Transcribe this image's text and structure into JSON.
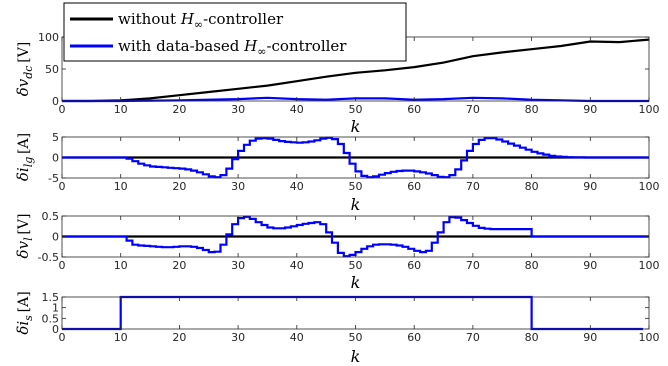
{
  "chart_data": [
    {
      "type": "line",
      "step": false,
      "ylabel_sym": "δv",
      "ylabel_sub": "dc",
      "ylabel_unit": "[V]",
      "xlabel": "k",
      "xlim": [
        0,
        100
      ],
      "ylim": [
        0,
        100
      ],
      "xticks": [
        0,
        10,
        20,
        30,
        40,
        50,
        60,
        70,
        80,
        90,
        100
      ],
      "yticks": [
        0,
        50,
        100
      ],
      "legend": {
        "placement": "top-left",
        "items": [
          {
            "text": "without ",
            "math": "H",
            "sub": "∞",
            "tail": "-controller",
            "color": "#000000"
          },
          {
            "text": "with data-based ",
            "math": "H",
            "sub": "∞",
            "tail": "-controller",
            "color": "#0000ff"
          }
        ]
      },
      "series": [
        {
          "color": "#000000",
          "x": [
            0,
            5,
            10,
            15,
            20,
            25,
            30,
            35,
            40,
            45,
            50,
            55,
            60,
            65,
            70,
            75,
            80,
            85,
            90,
            95,
            100
          ],
          "y": [
            0,
            0,
            1,
            4,
            9,
            14,
            19,
            24,
            31,
            38,
            44,
            48,
            53,
            60,
            70,
            76,
            81,
            86,
            93,
            92,
            96
          ]
        },
        {
          "color": "#0000ff",
          "x": [
            0,
            10,
            20,
            30,
            35,
            40,
            45,
            50,
            55,
            60,
            65,
            70,
            75,
            80,
            90,
            100
          ],
          "y": [
            0,
            0,
            1,
            3,
            5,
            3,
            2,
            4,
            4,
            2,
            3,
            5,
            4,
            2,
            0,
            0
          ]
        }
      ]
    },
    {
      "type": "line",
      "step": true,
      "ylabel_sym": "δi",
      "ylabel_sub": "lg",
      "ylabel_unit": "[A]",
      "xlabel": "k",
      "xlim": [
        0,
        100
      ],
      "ylim": [
        -5,
        5
      ],
      "xticks": [
        0,
        10,
        20,
        30,
        40,
        50,
        60,
        70,
        80,
        90,
        100
      ],
      "yticks": [
        -5,
        0,
        5
      ],
      "series": [
        {
          "color": "#000000",
          "x": [
            0,
            100
          ],
          "y": [
            0,
            0
          ]
        },
        {
          "color": "#0000ff",
          "x": [
            0,
            1,
            2,
            3,
            4,
            5,
            6,
            7,
            8,
            9,
            10,
            11,
            12,
            13,
            14,
            15,
            16,
            17,
            18,
            19,
            20,
            21,
            22,
            23,
            24,
            25,
            26,
            27,
            28,
            29,
            30,
            31,
            32,
            33,
            34,
            35,
            36,
            37,
            38,
            39,
            40,
            41,
            42,
            43,
            44,
            45,
            46,
            47,
            48,
            49,
            50,
            51,
            52,
            53,
            54,
            55,
            56,
            57,
            58,
            59,
            60,
            61,
            62,
            63,
            64,
            65,
            66,
            67,
            68,
            69,
            70,
            71,
            72,
            73,
            74,
            75,
            76,
            77,
            78,
            79,
            80,
            81,
            82,
            83,
            84,
            85,
            86,
            87,
            88,
            89,
            90,
            91,
            92,
            93,
            94,
            95,
            96,
            97,
            98,
            99
          ],
          "y": [
            0,
            0,
            0,
            0,
            0,
            0,
            0,
            0,
            0,
            0,
            0,
            -0.3,
            -0.9,
            -1.5,
            -1.9,
            -2.2,
            -2.3,
            -2.4,
            -2.5,
            -2.6,
            -2.7,
            -2.9,
            -3.2,
            -3.6,
            -4.1,
            -4.6,
            -4.8,
            -4.3,
            -2.7,
            -0.4,
            1.6,
            3.1,
            4.1,
            4.6,
            4.7,
            4.6,
            4.3,
            4.0,
            3.8,
            3.7,
            3.6,
            3.7,
            3.9,
            4.2,
            4.6,
            4.8,
            4.5,
            3.3,
            1.1,
            -1.5,
            -3.4,
            -4.5,
            -4.8,
            -4.6,
            -4.2,
            -3.8,
            -3.5,
            -3.3,
            -3.2,
            -3.2,
            -3.4,
            -3.6,
            -3.9,
            -4.3,
            -4.7,
            -4.8,
            -4.3,
            -2.9,
            -0.7,
            1.6,
            3.3,
            4.3,
            4.7,
            4.7,
            4.4,
            3.9,
            3.4,
            2.9,
            2.4,
            1.9,
            1.4,
            1.0,
            0.7,
            0.4,
            0.25,
            0.15,
            0.08,
            0.04,
            0.02,
            0,
            0,
            0,
            0,
            0,
            0,
            0,
            0,
            0,
            0,
            0
          ]
        }
      ]
    },
    {
      "type": "line",
      "step": true,
      "ylabel_sym": "δv",
      "ylabel_sub": "l",
      "ylabel_unit": "[V]",
      "xlabel": "k",
      "xlim": [
        0,
        100
      ],
      "ylim": [
        -0.5,
        0.5
      ],
      "xticks": [
        0,
        10,
        20,
        30,
        40,
        50,
        60,
        70,
        80,
        90,
        100
      ],
      "yticks": [
        -0.5,
        0,
        0.5
      ],
      "series": [
        {
          "color": "#000000",
          "x": [
            0,
            100
          ],
          "y": [
            0,
            0
          ]
        },
        {
          "color": "#0000ff",
          "x": [
            0,
            1,
            2,
            3,
            4,
            5,
            6,
            7,
            8,
            9,
            10,
            11,
            12,
            13,
            14,
            15,
            16,
            17,
            18,
            19,
            20,
            21,
            22,
            23,
            24,
            25,
            26,
            27,
            28,
            29,
            30,
            31,
            32,
            33,
            34,
            35,
            36,
            37,
            38,
            39,
            40,
            41,
            42,
            43,
            44,
            45,
            46,
            47,
            48,
            49,
            50,
            51,
            52,
            53,
            54,
            55,
            56,
            57,
            58,
            59,
            60,
            61,
            62,
            63,
            64,
            65,
            66,
            67,
            68,
            69,
            70,
            71,
            72,
            73,
            74,
            75,
            76,
            77,
            78,
            79,
            80,
            81,
            82,
            83,
            84,
            85,
            86,
            87,
            88,
            89,
            90,
            91,
            92,
            93,
            94,
            95,
            96,
            97,
            98,
            99
          ],
          "y": [
            0,
            0,
            0,
            0,
            0,
            0,
            0,
            0,
            0,
            0,
            0,
            -0.1,
            -0.2,
            -0.22,
            -0.23,
            -0.24,
            -0.25,
            -0.26,
            -0.26,
            -0.25,
            -0.24,
            -0.24,
            -0.25,
            -0.28,
            -0.33,
            -0.38,
            -0.37,
            -0.2,
            0.05,
            0.3,
            0.45,
            0.48,
            0.43,
            0.35,
            0.28,
            0.22,
            0.2,
            0.2,
            0.22,
            0.25,
            0.28,
            0.31,
            0.33,
            0.35,
            0.3,
            0.1,
            -0.15,
            -0.4,
            -0.48,
            -0.45,
            -0.38,
            -0.3,
            -0.24,
            -0.2,
            -0.19,
            -0.19,
            -0.2,
            -0.22,
            -0.25,
            -0.3,
            -0.35,
            -0.38,
            -0.35,
            -0.15,
            0.1,
            0.35,
            0.47,
            0.46,
            0.4,
            0.33,
            0.26,
            0.21,
            0.19,
            0.18,
            0.18,
            0.18,
            0.18,
            0.18,
            0.18,
            0.18,
            0,
            0,
            0,
            0,
            0,
            0,
            0,
            0,
            0,
            0,
            0,
            0,
            0,
            0,
            0,
            0,
            0,
            0,
            0,
            0
          ]
        }
      ]
    },
    {
      "type": "line",
      "step": true,
      "ylabel_sym": "δi",
      "ylabel_sub": "s",
      "ylabel_unit": "[A]",
      "xlabel": "k",
      "xlim": [
        0,
        100
      ],
      "ylim": [
        0,
        1.5
      ],
      "xticks": [
        0,
        10,
        20,
        30,
        40,
        50,
        60,
        70,
        80,
        90,
        100
      ],
      "yticks": [
        0,
        0.5,
        1,
        1.5
      ],
      "series": [
        {
          "color": "#0000ff",
          "x": [
            0,
            10,
            10,
            80,
            80,
            99
          ],
          "y": [
            0,
            0,
            1.5,
            1.5,
            0,
            0
          ]
        }
      ]
    }
  ]
}
